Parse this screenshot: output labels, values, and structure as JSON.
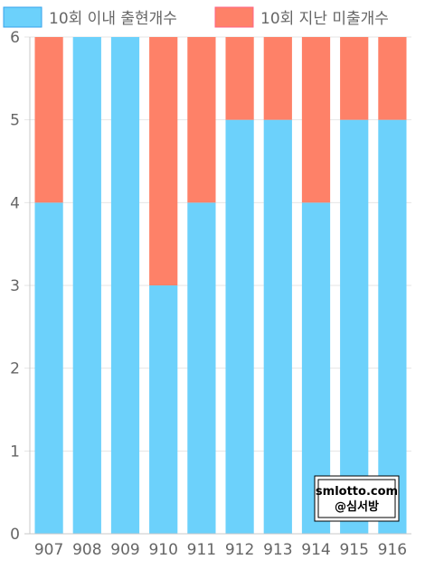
{
  "chart_data": {
    "type": "bar",
    "stacked": true,
    "categories": [
      "907",
      "908",
      "909",
      "910",
      "911",
      "912",
      "913",
      "914",
      "915",
      "916"
    ],
    "series": [
      {
        "name": "10회 이내 출현개수",
        "color": "#6cd1fb",
        "values": [
          4,
          6,
          6,
          3,
          4,
          5,
          5,
          4,
          5,
          5
        ]
      },
      {
        "name": "10회 지난 미출개수",
        "color": "#fe8168",
        "values": [
          2,
          0,
          0,
          3,
          2,
          1,
          1,
          2,
          1,
          1
        ]
      }
    ],
    "ylim": [
      0,
      6
    ],
    "yticks": [
      "0",
      "1",
      "2",
      "3",
      "4",
      "5",
      "6"
    ],
    "grid": true,
    "legend": "top"
  },
  "watermark": {
    "line1": "smlotto.com",
    "line2": "@심서방"
  }
}
